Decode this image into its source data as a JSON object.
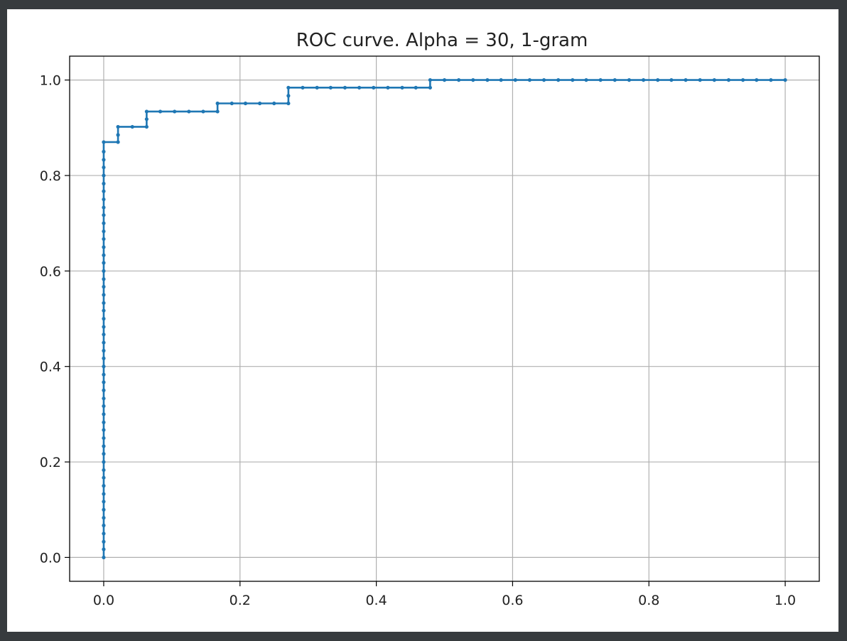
{
  "colors": {
    "window_background": "#373b3e",
    "figure_background": "#ffffff",
    "series": "#1f77b4",
    "grid": "#b0b0b0",
    "axes": "#000000"
  },
  "chart_data": {
    "type": "line",
    "title": "ROC curve. Alpha = 30, 1-gram",
    "xlabel": "",
    "ylabel": "",
    "xlim": [
      -0.05,
      1.05
    ],
    "ylim": [
      -0.05,
      1.05
    ],
    "grid": true,
    "marker": "dot",
    "x_ticks": [
      0.0,
      0.2,
      0.4,
      0.6,
      0.8,
      1.0
    ],
    "x_tick_labels": [
      "0.0",
      "0.2",
      "0.4",
      "0.6",
      "0.8",
      "1.0"
    ],
    "y_ticks": [
      0.0,
      0.2,
      0.4,
      0.6,
      0.8,
      1.0
    ],
    "y_tick_labels": [
      "0.0",
      "0.2",
      "0.4",
      "0.6",
      "0.8",
      "1.0"
    ],
    "series": [
      {
        "points": [
          [
            0.0,
            0.0
          ],
          [
            0.0,
            0.017
          ],
          [
            0.0,
            0.033
          ],
          [
            0.0,
            0.05
          ],
          [
            0.0,
            0.067
          ],
          [
            0.0,
            0.083
          ],
          [
            0.0,
            0.1
          ],
          [
            0.0,
            0.117
          ],
          [
            0.0,
            0.133
          ],
          [
            0.0,
            0.15
          ],
          [
            0.0,
            0.167
          ],
          [
            0.0,
            0.183
          ],
          [
            0.0,
            0.2
          ],
          [
            0.0,
            0.217
          ],
          [
            0.0,
            0.233
          ],
          [
            0.0,
            0.25
          ],
          [
            0.0,
            0.267
          ],
          [
            0.0,
            0.283
          ],
          [
            0.0,
            0.3
          ],
          [
            0.0,
            0.317
          ],
          [
            0.0,
            0.333
          ],
          [
            0.0,
            0.35
          ],
          [
            0.0,
            0.367
          ],
          [
            0.0,
            0.383
          ],
          [
            0.0,
            0.4
          ],
          [
            0.0,
            0.417
          ],
          [
            0.0,
            0.433
          ],
          [
            0.0,
            0.45
          ],
          [
            0.0,
            0.467
          ],
          [
            0.0,
            0.483
          ],
          [
            0.0,
            0.5
          ],
          [
            0.0,
            0.517
          ],
          [
            0.0,
            0.533
          ],
          [
            0.0,
            0.55
          ],
          [
            0.0,
            0.567
          ],
          [
            0.0,
            0.583
          ],
          [
            0.0,
            0.6
          ],
          [
            0.0,
            0.617
          ],
          [
            0.0,
            0.633
          ],
          [
            0.0,
            0.65
          ],
          [
            0.0,
            0.667
          ],
          [
            0.0,
            0.683
          ],
          [
            0.0,
            0.7
          ],
          [
            0.0,
            0.717
          ],
          [
            0.0,
            0.733
          ],
          [
            0.0,
            0.75
          ],
          [
            0.0,
            0.767
          ],
          [
            0.0,
            0.783
          ],
          [
            0.0,
            0.8
          ],
          [
            0.0,
            0.817
          ],
          [
            0.0,
            0.833
          ],
          [
            0.0,
            0.85
          ],
          [
            0.0,
            0.87
          ],
          [
            0.021,
            0.87
          ],
          [
            0.021,
            0.885
          ],
          [
            0.021,
            0.902
          ],
          [
            0.042,
            0.902
          ],
          [
            0.063,
            0.902
          ],
          [
            0.063,
            0.918
          ],
          [
            0.063,
            0.934
          ],
          [
            0.083,
            0.934
          ],
          [
            0.104,
            0.934
          ],
          [
            0.125,
            0.934
          ],
          [
            0.146,
            0.934
          ],
          [
            0.167,
            0.934
          ],
          [
            0.167,
            0.951
          ],
          [
            0.188,
            0.951
          ],
          [
            0.208,
            0.951
          ],
          [
            0.229,
            0.951
          ],
          [
            0.25,
            0.951
          ],
          [
            0.271,
            0.951
          ],
          [
            0.271,
            0.967
          ],
          [
            0.271,
            0.984
          ],
          [
            0.292,
            0.984
          ],
          [
            0.313,
            0.984
          ],
          [
            0.333,
            0.984
          ],
          [
            0.354,
            0.984
          ],
          [
            0.375,
            0.984
          ],
          [
            0.396,
            0.984
          ],
          [
            0.417,
            0.984
          ],
          [
            0.438,
            0.984
          ],
          [
            0.458,
            0.984
          ],
          [
            0.479,
            0.984
          ],
          [
            0.479,
            1.0
          ],
          [
            0.5,
            1.0
          ],
          [
            0.521,
            1.0
          ],
          [
            0.542,
            1.0
          ],
          [
            0.563,
            1.0
          ],
          [
            0.583,
            1.0
          ],
          [
            0.604,
            1.0
          ],
          [
            0.625,
            1.0
          ],
          [
            0.646,
            1.0
          ],
          [
            0.667,
            1.0
          ],
          [
            0.688,
            1.0
          ],
          [
            0.708,
            1.0
          ],
          [
            0.729,
            1.0
          ],
          [
            0.75,
            1.0
          ],
          [
            0.771,
            1.0
          ],
          [
            0.792,
            1.0
          ],
          [
            0.813,
            1.0
          ],
          [
            0.833,
            1.0
          ],
          [
            0.854,
            1.0
          ],
          [
            0.875,
            1.0
          ],
          [
            0.896,
            1.0
          ],
          [
            0.917,
            1.0
          ],
          [
            0.938,
            1.0
          ],
          [
            0.958,
            1.0
          ],
          [
            0.979,
            1.0
          ],
          [
            1.0,
            1.0
          ]
        ]
      }
    ]
  }
}
